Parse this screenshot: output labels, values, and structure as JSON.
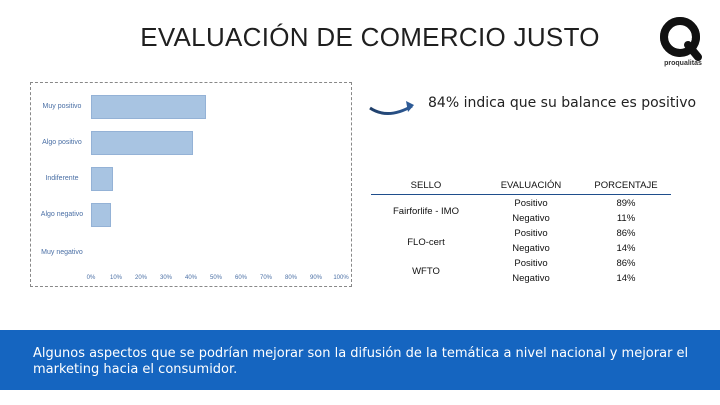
{
  "title": "EVALUACIÓN DE COMERCIO JUSTO",
  "logo": {
    "name": "proqualitas-logo",
    "text": "proqualitas",
    "color": "#111111"
  },
  "headline": "84% indica que su balance es positivo",
  "chart_data": {
    "type": "bar",
    "orientation": "horizontal",
    "categories": [
      "Muy positivo",
      "Algo positivo",
      "Indiferente",
      "Algo negativo",
      "Muy negativo"
    ],
    "values": [
      45,
      40,
      8,
      7,
      0
    ],
    "ticks": [
      "0%",
      "10%",
      "20%",
      "30%",
      "40%",
      "50%",
      "60%",
      "70%",
      "80%",
      "90%",
      "100%"
    ],
    "xlim": [
      0,
      100
    ],
    "bar_color": "#a8c4e2"
  },
  "table": {
    "headers": [
      "SELLO",
      "EVALUACIÓN",
      "PORCENTAJE"
    ],
    "groups": [
      {
        "sello": "Fairforlife - IMO",
        "rows": [
          [
            "Positivo",
            "89%"
          ],
          [
            "Negativo",
            "11%"
          ]
        ]
      },
      {
        "sello": "FLO-cert",
        "rows": [
          [
            "Positivo",
            "86%"
          ],
          [
            "Negativo",
            "14%"
          ]
        ]
      },
      {
        "sello": "WFTO",
        "rows": [
          [
            "Positivo",
            "86%"
          ],
          [
            "Negativo",
            "14%"
          ]
        ]
      }
    ]
  },
  "footer": {
    "text": "Algunos aspectos que se podrían mejorar son la difusión de la temática a nivel nacional y mejorar el marketing hacia el consumidor.",
    "bg_color": "#1565c0"
  }
}
